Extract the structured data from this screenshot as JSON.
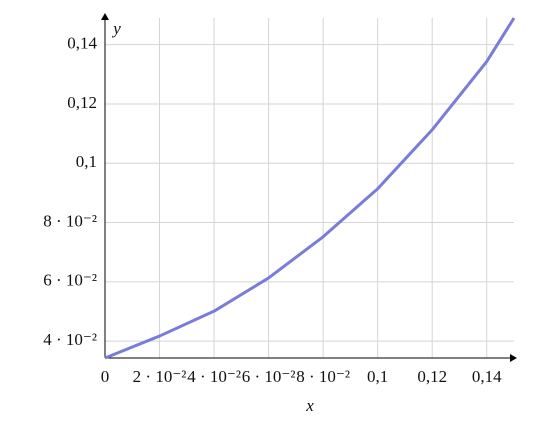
{
  "chart_data": {
    "type": "line",
    "x_label": "x",
    "y_label": "y",
    "x": [
      0,
      0.02,
      0.04,
      0.06,
      0.08,
      0.1,
      0.12,
      0.14,
      0.15
    ],
    "series": [
      {
        "color": "#7b7bd9",
        "values": [
          0.0343,
          0.0417,
          0.0501,
          0.0613,
          0.0752,
          0.0914,
          0.1113,
          0.1343,
          0.149
        ]
      }
    ],
    "xlim": [
      0,
      0.15
    ],
    "ylim": [
      0.0343,
      0.149
    ],
    "xticks": [
      0,
      {
        "value": 0.02,
        "label": "2 · 10⁻²"
      },
      {
        "value": 0.04,
        "label": "4 · 10⁻²"
      },
      {
        "value": 0.06,
        "label": "6 · 10⁻²"
      },
      {
        "value": 0.08,
        "label": "8 · 10⁻²"
      },
      {
        "value": 0.1,
        "label": "0,1"
      },
      {
        "value": 0.12,
        "label": "0,12"
      },
      {
        "value": 0.14,
        "label": "0,14"
      }
    ],
    "yticks": [
      {
        "value": 0.04,
        "label": "4 · 10⁻²"
      },
      {
        "value": 0.06,
        "label": "6 · 10⁻²"
      },
      {
        "value": 0.08,
        "label": "8 · 10⁻²"
      },
      {
        "value": 0.1,
        "label": "0,1"
      },
      {
        "value": 0.12,
        "label": "0,12"
      },
      {
        "value": 0.14,
        "label": "0,14"
      }
    ],
    "grid": true
  }
}
